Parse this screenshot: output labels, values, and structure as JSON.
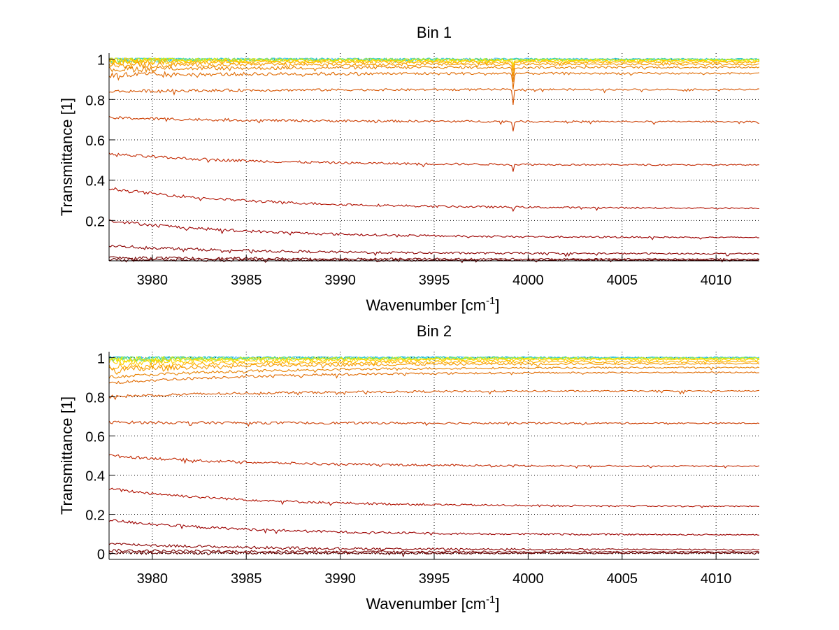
{
  "chart_data": [
    {
      "type": "line",
      "title": "Bin 1",
      "xlabel": "Wavenumber [cm",
      "xlabel_sup": "-1",
      "xlabel_end": "]",
      "ylabel": "Transmittance [1]",
      "xlim": [
        3977.7,
        4012.3
      ],
      "ylim": [
        0.0,
        1.03
      ],
      "xticks": [
        3980,
        3985,
        3990,
        3995,
        4000,
        4005,
        4010
      ],
      "xtick_labels": [
        "3980",
        "3985",
        "3990",
        "3995",
        "4000",
        "4005",
        "4010"
      ],
      "yticks": [
        0.2,
        0.4,
        0.6,
        0.8,
        1
      ],
      "ytick_labels": [
        "0.2",
        "0.4",
        "0.6",
        "0.8",
        "1"
      ],
      "grid": true,
      "absorption_line_x": 3999.2,
      "series": [
        {
          "color": "#4cc3ff",
          "start": 1.0,
          "end": 1.0,
          "dip": 0.0
        },
        {
          "color": "#2fd0c8",
          "start": 1.0,
          "end": 1.0,
          "dip": 0.0
        },
        {
          "color": "#8ee64a",
          "start": 0.998,
          "end": 0.998,
          "dip": 0.0
        },
        {
          "color": "#e8e800",
          "start": 0.995,
          "end": 0.995,
          "dip": 0.02
        },
        {
          "color": "#ffd000",
          "start": 0.99,
          "end": 0.99,
          "dip": 0.03
        },
        {
          "color": "#ffb000",
          "start": 0.985,
          "end": 0.985,
          "dip": 0.04
        },
        {
          "color": "#f59a00",
          "start": 0.97,
          "end": 0.975,
          "dip": 0.06
        },
        {
          "color": "#e88200",
          "start": 0.95,
          "end": 0.96,
          "dip": 0.07
        },
        {
          "color": "#e06a00",
          "start": 0.92,
          "end": 0.93,
          "dip": 0.08
        },
        {
          "color": "#d65400",
          "start": 0.84,
          "end": 0.85,
          "dip": 0.08
        },
        {
          "color": "#cc3d00",
          "start": 0.71,
          "end": 0.69,
          "dip": 0.05
        },
        {
          "color": "#c22800",
          "start": 0.53,
          "end": 0.475,
          "dip": 0.035
        },
        {
          "color": "#b01000",
          "start": 0.36,
          "end": 0.26,
          "dip": 0.015
        },
        {
          "color": "#9c0000",
          "start": 0.2,
          "end": 0.115,
          "dip": 0.005
        },
        {
          "color": "#8a0000",
          "start": 0.075,
          "end": 0.035,
          "dip": 0.0
        },
        {
          "color": "#760000",
          "start": 0.015,
          "end": 0.008,
          "dip": 0.0
        },
        {
          "color": "#640000",
          "start": 0.005,
          "end": 0.003,
          "dip": 0.0
        }
      ]
    },
    {
      "type": "line",
      "title": "Bin 2",
      "xlabel": "Wavenumber [cm",
      "xlabel_sup": "-1",
      "xlabel_end": "]",
      "ylabel": "Transmittance [1]",
      "xlim": [
        3977.7,
        4012.3
      ],
      "ylim": [
        -0.03,
        1.03
      ],
      "xticks": [
        3980,
        3985,
        3990,
        3995,
        4000,
        4005,
        4010
      ],
      "xtick_labels": [
        "3980",
        "3985",
        "3990",
        "3995",
        "4000",
        "4005",
        "4010"
      ],
      "yticks": [
        0,
        0.2,
        0.4,
        0.6,
        0.8,
        1
      ],
      "ytick_labels": [
        "0",
        "0.2",
        "0.4",
        "0.6",
        "0.8",
        "1"
      ],
      "grid": true,
      "absorption_line_x": null,
      "series": [
        {
          "color": "#4cc3ff",
          "start": 1.0,
          "end": 1.0,
          "dip": 0.0
        },
        {
          "color": "#2fd0c8",
          "start": 1.0,
          "end": 1.0,
          "dip": 0.0
        },
        {
          "color": "#8ee64a",
          "start": 0.995,
          "end": 0.997,
          "dip": 0.0
        },
        {
          "color": "#e8e800",
          "start": 0.99,
          "end": 0.995,
          "dip": 0.0
        },
        {
          "color": "#ffd000",
          "start": 0.975,
          "end": 0.99,
          "dip": 0.0
        },
        {
          "color": "#ffb000",
          "start": 0.955,
          "end": 0.98,
          "dip": 0.0
        },
        {
          "color": "#f59a00",
          "start": 0.935,
          "end": 0.97,
          "dip": 0.0
        },
        {
          "color": "#e88200",
          "start": 0.9,
          "end": 0.95,
          "dip": 0.0
        },
        {
          "color": "#e06a00",
          "start": 0.87,
          "end": 0.925,
          "dip": 0.0
        },
        {
          "color": "#d65400",
          "start": 0.8,
          "end": 0.83,
          "dip": 0.0
        },
        {
          "color": "#cc3d00",
          "start": 0.67,
          "end": 0.665,
          "dip": 0.0
        },
        {
          "color": "#c22800",
          "start": 0.5,
          "end": 0.445,
          "dip": 0.0
        },
        {
          "color": "#b01000",
          "start": 0.33,
          "end": 0.24,
          "dip": 0.0
        },
        {
          "color": "#9c0000",
          "start": 0.17,
          "end": 0.095,
          "dip": 0.0
        },
        {
          "color": "#8a0000",
          "start": 0.05,
          "end": 0.02,
          "dip": 0.0
        },
        {
          "color": "#760000",
          "start": 0.015,
          "end": 0.008,
          "dip": 0.0
        },
        {
          "color": "#640000",
          "start": 0.003,
          "end": 0.002,
          "dip": 0.0
        }
      ]
    }
  ]
}
